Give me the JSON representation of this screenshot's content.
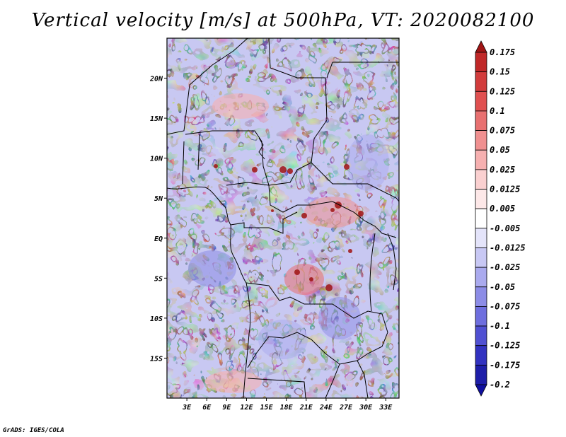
{
  "title": "Vertical velocity [m/s] at 500hPa, VT: 2020082100",
  "credit": "GrADS: IGES/COLA",
  "lat_labels": [
    "20N",
    "15N",
    "10N",
    "5N",
    "EQ",
    "5S",
    "10S",
    "15S"
  ],
  "lat_values": [
    20,
    15,
    10,
    5,
    0,
    -5,
    -10,
    -15
  ],
  "lon_labels": [
    "3E",
    "6E",
    "9E",
    "12E",
    "15E",
    "18E",
    "21E",
    "24E",
    "27E",
    "30E",
    "33E"
  ],
  "lon_values": [
    3,
    6,
    9,
    12,
    15,
    18,
    21,
    24,
    27,
    30,
    33
  ],
  "map_extent": {
    "lon_min": 0,
    "lon_max": 35,
    "lat_min": -20,
    "lat_max": 25
  },
  "colorbar": {
    "labels": [
      "0.175",
      "0.15",
      "0.125",
      "0.1",
      "0.075",
      "0.05",
      "0.025",
      "0.0125",
      "0.005",
      "-0.005",
      "-0.0125",
      "-0.025",
      "-0.05",
      "-0.075",
      "-0.1",
      "-0.125",
      "-0.175",
      "-0.2"
    ],
    "colors": [
      "#a01414",
      "#c02828",
      "#d23c3c",
      "#e05050",
      "#e87070",
      "#f09090",
      "#f6b0b0",
      "#fad0d0",
      "#fde8e8",
      "#ffffff",
      "#e4e4fa",
      "#c8c8f4",
      "#aaaaee",
      "#8c8ce6",
      "#6e6ede",
      "#5050d2",
      "#3232c0",
      "#1e1ea8",
      "#1010a0"
    ]
  }
}
